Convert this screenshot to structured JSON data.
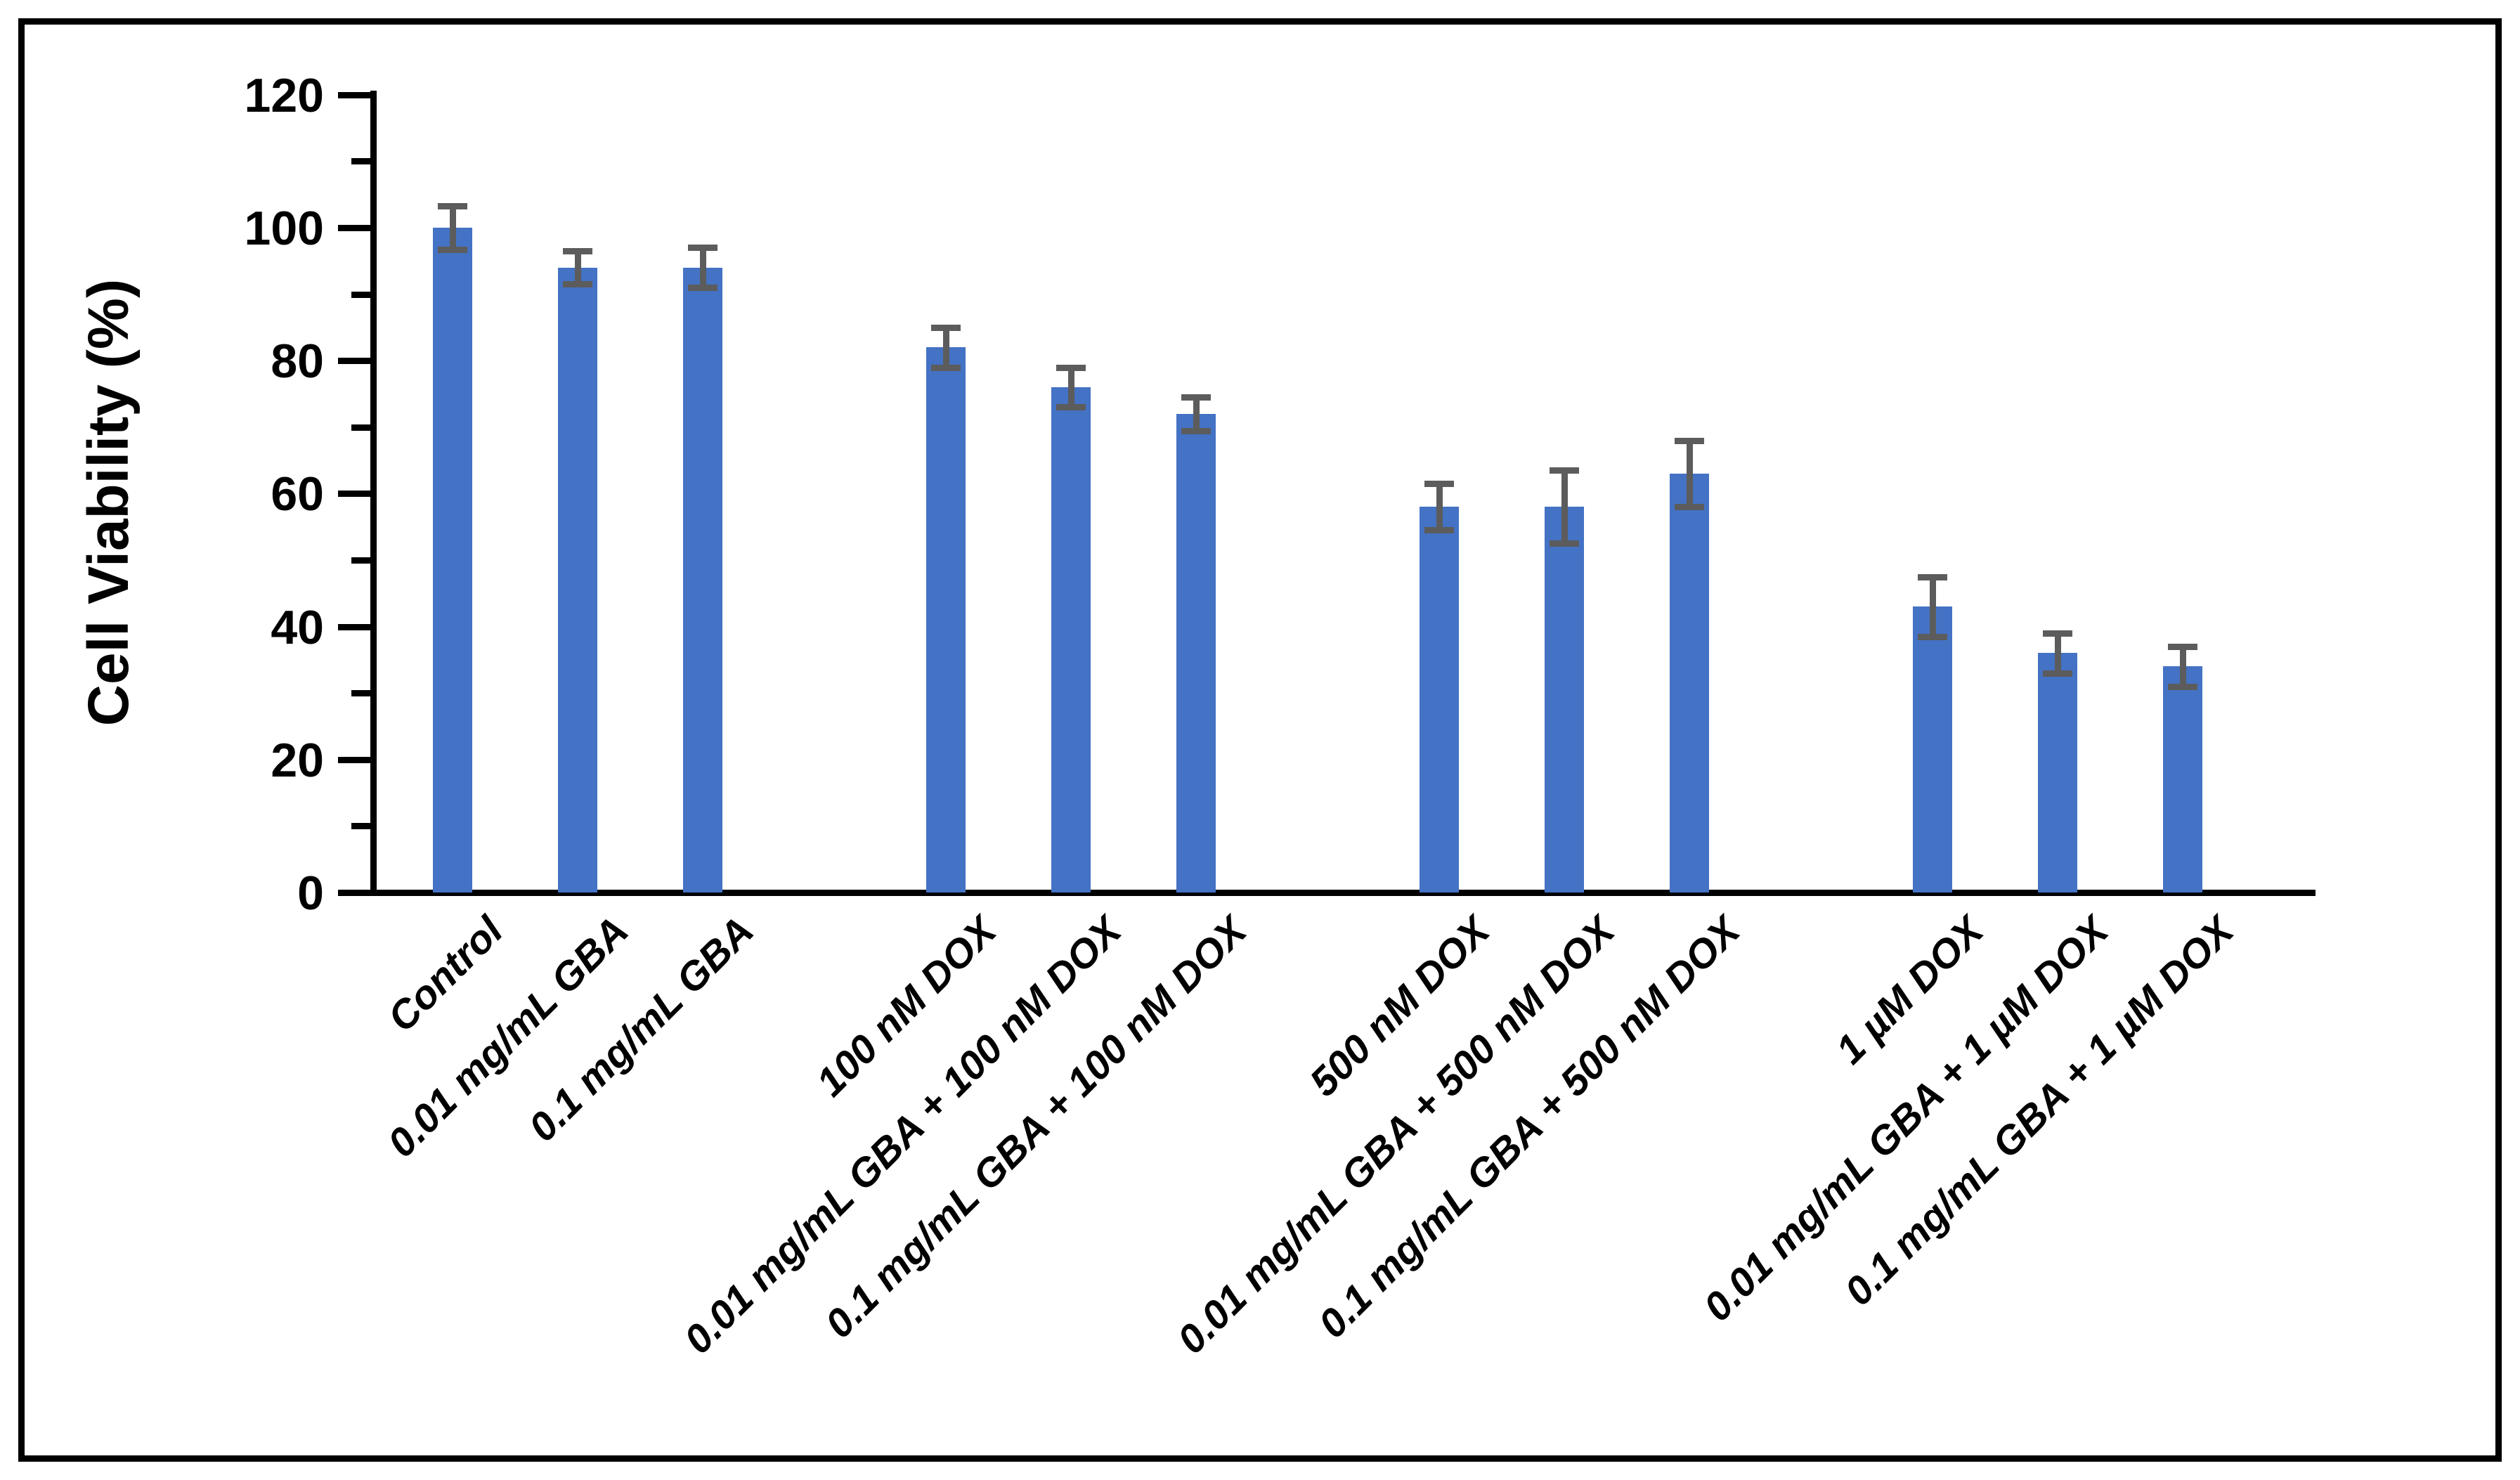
{
  "figure": {
    "background_color": "#ffffff",
    "border_color": "#000000"
  },
  "chart_data": {
    "type": "bar",
    "title": "",
    "xlabel": "",
    "ylabel": "Cell Viability (%)",
    "ylim": [
      0,
      120
    ],
    "ytick_major_step": 20,
    "ytick_minor_step": 10,
    "ytick_labels": [
      "0",
      "20",
      "40",
      "60",
      "80",
      "100",
      "120"
    ],
    "grid": false,
    "legend": "none",
    "bar_color": "#4472c4",
    "error_bar_color": "#5c5c5c",
    "axis_color": "#000000",
    "group_size": 3,
    "categories": [
      "Control",
      "0.01 mg/mL GBA",
      "0.1 mg/mL GBA",
      "100 nM DOX",
      "0.01 mg/mL GBA + 100 nM DOX",
      "0.1 mg/mL GBA + 100 nM DOX",
      "500 nM DOX",
      "0.01 mg/mL GBA + 500 nM DOX",
      "0.1 mg/mL GBA + 500 nM DOX",
      "1 µM DOX",
      "0.01 mg/mL GBA + 1 µM DOX",
      "0.1 mg/mL GBA + 1 µM DOX"
    ],
    "values": [
      100,
      94,
      94,
      82,
      76,
      72,
      58,
      58,
      63,
      43,
      36,
      34
    ],
    "errors": [
      3.3,
      2.5,
      3,
      3,
      3,
      2.5,
      3.5,
      5.5,
      5,
      4.5,
      3,
      3
    ]
  }
}
